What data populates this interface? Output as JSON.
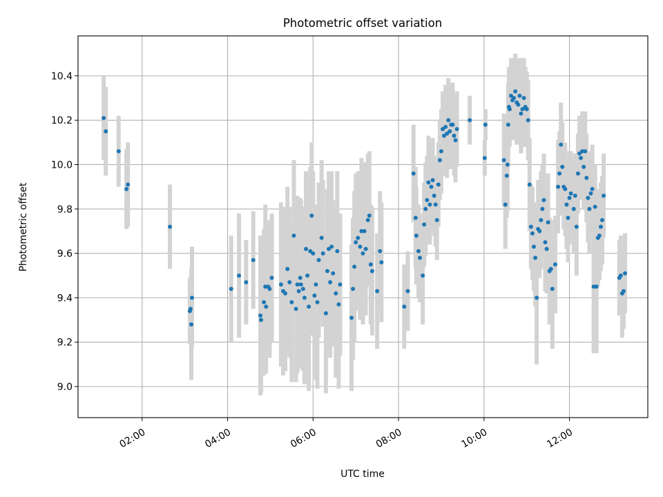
{
  "chart_data": {
    "type": "scatter",
    "title": "Photometric offset variation",
    "xlabel": "UTC time",
    "ylabel": "Photometric offset",
    "x_axis": "time",
    "xlim": [
      "00:30",
      "13:50"
    ],
    "ylim": [
      8.86,
      10.58
    ],
    "xticks": [
      "02:00",
      "04:00",
      "06:00",
      "08:00",
      "10:00",
      "12:00"
    ],
    "yticks": [
      "9.0",
      "9.2",
      "9.4",
      "9.6",
      "9.8",
      "10.0",
      "10.2",
      "10.4"
    ],
    "grid": true,
    "colors": {
      "point": "#1f77b4",
      "errorbar": "#d3d3d3"
    },
    "series": [
      {
        "points": [
          {
            "t": "01:06",
            "y": 10.21,
            "err": 0.19
          },
          {
            "t": "01:09",
            "y": 10.15,
            "err": 0.2
          },
          {
            "t": "01:27",
            "y": 10.06,
            "err": 0.16
          },
          {
            "t": "01:38",
            "y": 9.89,
            "err": 0.18
          },
          {
            "t": "01:40",
            "y": 9.91,
            "err": 0.19
          },
          {
            "t": "02:39",
            "y": 9.72,
            "err": 0.19
          },
          {
            "t": "03:07",
            "y": 9.34,
            "err": 0.15
          },
          {
            "t": "03:08",
            "y": 9.35,
            "err": 0.13
          },
          {
            "t": "03:09",
            "y": 9.28,
            "err": 0.25
          },
          {
            "t": "03:10",
            "y": 9.4,
            "err": 0.23
          },
          {
            "t": "04:05",
            "y": 9.44,
            "err": 0.24
          },
          {
            "t": "04:16",
            "y": 9.5,
            "err": 0.28
          },
          {
            "t": "04:26",
            "y": 9.47,
            "err": 0.19
          },
          {
            "t": "04:36",
            "y": 9.57,
            "err": 0.22
          },
          {
            "t": "04:46",
            "y": 9.32,
            "err": 0.36
          },
          {
            "t": "04:47",
            "y": 9.3,
            "err": 0.33
          },
          {
            "t": "04:51",
            "y": 9.38,
            "err": 0.33
          },
          {
            "t": "04:53",
            "y": 9.45,
            "err": 0.37
          },
          {
            "t": "04:54",
            "y": 9.36,
            "err": 0.3
          },
          {
            "t": "04:57",
            "y": 9.45,
            "err": 0.28
          },
          {
            "t": "04:59",
            "y": 9.44,
            "err": 0.31
          },
          {
            "t": "05:02",
            "y": 9.49,
            "err": 0.29
          },
          {
            "t": "05:15",
            "y": 9.46,
            "err": 0.37
          },
          {
            "t": "05:18",
            "y": 9.43,
            "err": 0.38
          },
          {
            "t": "05:21",
            "y": 9.42,
            "err": 0.35
          },
          {
            "t": "05:24",
            "y": 9.53,
            "err": 0.37
          },
          {
            "t": "05:27",
            "y": 9.47,
            "err": 0.34
          },
          {
            "t": "05:30",
            "y": 9.38,
            "err": 0.36
          },
          {
            "t": "05:33",
            "y": 9.68,
            "err": 0.34
          },
          {
            "t": "05:36",
            "y": 9.35,
            "err": 0.33
          },
          {
            "t": "05:38",
            "y": 9.46,
            "err": 0.4
          },
          {
            "t": "05:40",
            "y": 9.43,
            "err": 0.35
          },
          {
            "t": "05:42",
            "y": 9.49,
            "err": 0.36
          },
          {
            "t": "05:43",
            "y": 9.46,
            "err": 0.38
          },
          {
            "t": "05:46",
            "y": 9.44,
            "err": 0.37
          },
          {
            "t": "05:48",
            "y": 9.4,
            "err": 0.39
          },
          {
            "t": "05:50",
            "y": 9.62,
            "err": 0.35
          },
          {
            "t": "05:52",
            "y": 9.5,
            "err": 0.38
          },
          {
            "t": "05:54",
            "y": 9.36,
            "err": 0.38
          },
          {
            "t": "05:56",
            "y": 9.61,
            "err": 0.38
          },
          {
            "t": "05:58",
            "y": 9.77,
            "err": 0.33
          },
          {
            "t": "06:00",
            "y": 9.6,
            "err": 0.37
          },
          {
            "t": "06:02",
            "y": 9.41,
            "err": 0.38
          },
          {
            "t": "06:04",
            "y": 9.46,
            "err": 0.36
          },
          {
            "t": "06:06",
            "y": 9.38,
            "err": 0.39
          },
          {
            "t": "06:08",
            "y": 9.57,
            "err": 0.35
          },
          {
            "t": "06:12",
            "y": 9.67,
            "err": 0.35
          },
          {
            "t": "06:14",
            "y": 9.6,
            "err": 0.33
          },
          {
            "t": "06:18",
            "y": 9.33,
            "err": 0.36
          },
          {
            "t": "06:20",
            "y": 9.52,
            "err": 0.37
          },
          {
            "t": "06:22",
            "y": 9.62,
            "err": 0.35
          },
          {
            "t": "06:24",
            "y": 9.47,
            "err": 0.34
          },
          {
            "t": "06:26",
            "y": 9.63,
            "err": 0.34
          },
          {
            "t": "06:28",
            "y": 9.51,
            "err": 0.33
          },
          {
            "t": "06:32",
            "y": 9.42,
            "err": 0.38
          },
          {
            "t": "06:34",
            "y": 9.61,
            "err": 0.36
          },
          {
            "t": "06:36",
            "y": 9.37,
            "err": 0.38
          },
          {
            "t": "06:38",
            "y": 9.46,
            "err": 0.32
          },
          {
            "t": "06:54",
            "y": 9.31,
            "err": 0.33
          },
          {
            "t": "06:56",
            "y": 9.44,
            "err": 0.32
          },
          {
            "t": "06:58",
            "y": 9.54,
            "err": 0.34
          },
          {
            "t": "07:00",
            "y": 9.65,
            "err": 0.31
          },
          {
            "t": "07:03",
            "y": 9.67,
            "err": 0.3
          },
          {
            "t": "07:06",
            "y": 9.63,
            "err": 0.33
          },
          {
            "t": "07:08",
            "y": 9.7,
            "err": 0.33
          },
          {
            "t": "07:10",
            "y": 9.6,
            "err": 0.32
          },
          {
            "t": "07:12",
            "y": 9.7,
            "err": 0.31
          },
          {
            "t": "07:14",
            "y": 9.62,
            "err": 0.3
          },
          {
            "t": "07:17",
            "y": 9.75,
            "err": 0.3
          },
          {
            "t": "07:19",
            "y": 9.77,
            "err": 0.29
          },
          {
            "t": "07:21",
            "y": 9.55,
            "err": 0.27
          },
          {
            "t": "07:23",
            "y": 9.52,
            "err": 0.29
          },
          {
            "t": "07:30",
            "y": 9.43,
            "err": 0.26
          },
          {
            "t": "07:34",
            "y": 9.61,
            "err": 0.27
          },
          {
            "t": "07:36",
            "y": 9.56,
            "err": 0.27
          },
          {
            "t": "08:08",
            "y": 9.36,
            "err": 0.19
          },
          {
            "t": "08:13",
            "y": 9.43,
            "err": 0.18
          },
          {
            "t": "08:21",
            "y": 9.96,
            "err": 0.22
          },
          {
            "t": "08:24",
            "y": 9.76,
            "err": 0.23
          },
          {
            "t": "08:25",
            "y": 9.68,
            "err": 0.22
          },
          {
            "t": "08:28",
            "y": 9.61,
            "err": 0.21
          },
          {
            "t": "08:30",
            "y": 9.58,
            "err": 0.2
          },
          {
            "t": "08:34",
            "y": 9.5,
            "err": 0.22
          },
          {
            "t": "08:36",
            "y": 9.73,
            "err": 0.19
          },
          {
            "t": "08:38",
            "y": 9.8,
            "err": 0.21
          },
          {
            "t": "08:40",
            "y": 9.84,
            "err": 0.2
          },
          {
            "t": "08:42",
            "y": 9.92,
            "err": 0.21
          },
          {
            "t": "08:44",
            "y": 9.82,
            "err": 0.18
          },
          {
            "t": "08:46",
            "y": 9.9,
            "err": 0.2
          },
          {
            "t": "08:48",
            "y": 9.93,
            "err": 0.19
          },
          {
            "t": "08:50",
            "y": 9.86,
            "err": 0.18
          },
          {
            "t": "08:52",
            "y": 9.82,
            "err": 0.19
          },
          {
            "t": "08:54",
            "y": 9.75,
            "err": 0.18
          },
          {
            "t": "08:56",
            "y": 9.91,
            "err": 0.19
          },
          {
            "t": "08:58",
            "y": 10.02,
            "err": 0.18
          },
          {
            "t": "09:00",
            "y": 10.06,
            "err": 0.19
          },
          {
            "t": "09:02",
            "y": 10.16,
            "err": 0.17
          },
          {
            "t": "09:04",
            "y": 10.13,
            "err": 0.18
          },
          {
            "t": "09:06",
            "y": 10.17,
            "err": 0.19
          },
          {
            "t": "09:08",
            "y": 10.14,
            "err": 0.2
          },
          {
            "t": "09:10",
            "y": 10.2,
            "err": 0.19
          },
          {
            "t": "09:12",
            "y": 10.15,
            "err": 0.17
          },
          {
            "t": "09:14",
            "y": 10.18,
            "err": 0.18
          },
          {
            "t": "09:16",
            "y": 10.18,
            "err": 0.19
          },
          {
            "t": "09:18",
            "y": 10.13,
            "err": 0.18
          },
          {
            "t": "09:20",
            "y": 10.11,
            "err": 0.19
          },
          {
            "t": "09:22",
            "y": 10.16,
            "err": 0.17
          },
          {
            "t": "09:40",
            "y": 10.2,
            "err": 0.11
          },
          {
            "t": "10:01",
            "y": 10.03,
            "err": 0.08
          },
          {
            "t": "10:02",
            "y": 10.18,
            "err": 0.07
          },
          {
            "t": "10:28",
            "y": 10.02,
            "err": 0.21
          },
          {
            "t": "10:30",
            "y": 9.82,
            "err": 0.2
          },
          {
            "t": "10:32",
            "y": 9.95,
            "err": 0.19
          },
          {
            "t": "10:33",
            "y": 10.0,
            "err": 0.21
          },
          {
            "t": "10:34",
            "y": 10.18,
            "err": 0.19
          },
          {
            "t": "10:35",
            "y": 10.26,
            "err": 0.18
          },
          {
            "t": "10:36",
            "y": 10.25,
            "err": 0.17
          },
          {
            "t": "10:38",
            "y": 10.31,
            "err": 0.17
          },
          {
            "t": "10:40",
            "y": 10.29,
            "err": 0.18
          },
          {
            "t": "10:42",
            "y": 10.3,
            "err": 0.18
          },
          {
            "t": "10:44",
            "y": 10.33,
            "err": 0.17
          },
          {
            "t": "10:46",
            "y": 10.28,
            "err": 0.19
          },
          {
            "t": "10:48",
            "y": 10.27,
            "err": 0.18
          },
          {
            "t": "10:50",
            "y": 10.31,
            "err": 0.17
          },
          {
            "t": "10:52",
            "y": 10.23,
            "err": 0.18
          },
          {
            "t": "10:54",
            "y": 10.25,
            "err": 0.17
          },
          {
            "t": "10:56",
            "y": 10.3,
            "err": 0.18
          },
          {
            "t": "10:58",
            "y": 10.26,
            "err": 0.18
          },
          {
            "t": "11:00",
            "y": 10.25,
            "err": 0.17
          },
          {
            "t": "11:02",
            "y": 10.2,
            "err": 0.18
          },
          {
            "t": "11:04",
            "y": 9.91,
            "err": 0.21
          },
          {
            "t": "11:06",
            "y": 9.72,
            "err": 0.19
          },
          {
            "t": "11:08",
            "y": 9.69,
            "err": 0.21
          },
          {
            "t": "11:10",
            "y": 9.63,
            "err": 0.2
          },
          {
            "t": "11:12",
            "y": 9.58,
            "err": 0.22
          },
          {
            "t": "11:14",
            "y": 9.4,
            "err": 0.3
          },
          {
            "t": "11:16",
            "y": 9.71,
            "err": 0.22
          },
          {
            "t": "11:18",
            "y": 9.7,
            "err": 0.21
          },
          {
            "t": "11:20",
            "y": 9.75,
            "err": 0.22
          },
          {
            "t": "11:22",
            "y": 9.8,
            "err": 0.2
          },
          {
            "t": "11:24",
            "y": 9.84,
            "err": 0.21
          },
          {
            "t": "11:26",
            "y": 9.65,
            "err": 0.22
          },
          {
            "t": "11:28",
            "y": 9.62,
            "err": 0.2
          },
          {
            "t": "11:30",
            "y": 9.74,
            "err": 0.22
          },
          {
            "t": "11:32",
            "y": 9.52,
            "err": 0.24
          },
          {
            "t": "11:34",
            "y": 9.53,
            "err": 0.22
          },
          {
            "t": "11:36",
            "y": 9.44,
            "err": 0.27
          },
          {
            "t": "11:40",
            "y": 9.55,
            "err": 0.22
          },
          {
            "t": "11:44",
            "y": 9.9,
            "err": 0.21
          },
          {
            "t": "11:46",
            "y": 9.96,
            "err": 0.19
          },
          {
            "t": "11:48",
            "y": 10.09,
            "err": 0.19
          },
          {
            "t": "11:50",
            "y": 9.99,
            "err": 0.2
          },
          {
            "t": "11:52",
            "y": 9.9,
            "err": 0.19
          },
          {
            "t": "11:54",
            "y": 9.89,
            "err": 0.21
          },
          {
            "t": "11:56",
            "y": 9.82,
            "err": 0.2
          },
          {
            "t": "11:58",
            "y": 9.76,
            "err": 0.2
          },
          {
            "t": "12:00",
            "y": 9.85,
            "err": 0.21
          },
          {
            "t": "12:02",
            "y": 9.87,
            "err": 0.19
          },
          {
            "t": "12:06",
            "y": 9.8,
            "err": 0.2
          },
          {
            "t": "12:08",
            "y": 9.86,
            "err": 0.19
          },
          {
            "t": "12:10",
            "y": 9.72,
            "err": 0.22
          },
          {
            "t": "12:12",
            "y": 9.96,
            "err": 0.18
          },
          {
            "t": "12:14",
            "y": 10.05,
            "err": 0.17
          },
          {
            "t": "12:16",
            "y": 10.03,
            "err": 0.19
          },
          {
            "t": "12:18",
            "y": 10.06,
            "err": 0.18
          },
          {
            "t": "12:20",
            "y": 9.99,
            "err": 0.19
          },
          {
            "t": "12:22",
            "y": 10.06,
            "err": 0.18
          },
          {
            "t": "12:24",
            "y": 9.94,
            "err": 0.2
          },
          {
            "t": "12:26",
            "y": 9.85,
            "err": 0.2
          },
          {
            "t": "12:28",
            "y": 9.8,
            "err": 0.2
          },
          {
            "t": "12:30",
            "y": 9.87,
            "err": 0.19
          },
          {
            "t": "12:32",
            "y": 9.89,
            "err": 0.2
          },
          {
            "t": "12:34",
            "y": 9.45,
            "err": 0.3
          },
          {
            "t": "12:36",
            "y": 9.81,
            "err": 0.19
          },
          {
            "t": "12:38",
            "y": 9.45,
            "err": 0.3
          },
          {
            "t": "12:40",
            "y": 9.67,
            "err": 0.22
          },
          {
            "t": "12:42",
            "y": 9.68,
            "err": 0.2
          },
          {
            "t": "12:44",
            "y": 9.72,
            "err": 0.2
          },
          {
            "t": "12:46",
            "y": 9.75,
            "err": 0.2
          },
          {
            "t": "12:48",
            "y": 9.86,
            "err": 0.19
          },
          {
            "t": "13:10",
            "y": 9.49,
            "err": 0.17
          },
          {
            "t": "13:12",
            "y": 9.5,
            "err": 0.18
          },
          {
            "t": "13:14",
            "y": 9.42,
            "err": 0.2
          },
          {
            "t": "13:16",
            "y": 9.43,
            "err": 0.17
          },
          {
            "t": "13:18",
            "y": 9.51,
            "err": 0.18
          }
        ]
      }
    ]
  }
}
